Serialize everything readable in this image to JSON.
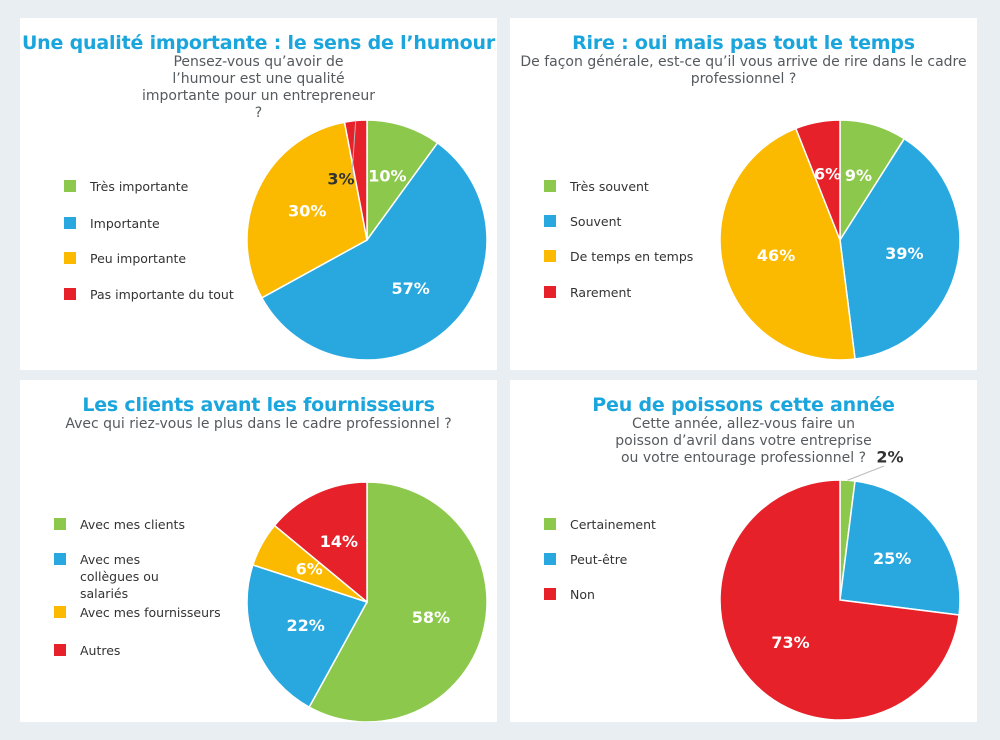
{
  "colors": {
    "green": "#8cc84b",
    "blue": "#29a8e0",
    "yellow": "#fbba00",
    "red": "#e6212a"
  },
  "chart_data": [
    {
      "type": "pie",
      "title": "Une qualité importante : le sens de l’humour",
      "subtitle": "Pensez-vous qu’avoir de l’humour est une qualité importante pour un entrepreneur ?",
      "categories": [
        "Très importante",
        "Importante",
        "Peu importante",
        "Pas importante du tout"
      ],
      "values": [
        10,
        57,
        30,
        3
      ],
      "labels": [
        "10%",
        "57%",
        "30%",
        "3%"
      ],
      "colors": [
        "#8cc84b",
        "#29a8e0",
        "#fbba00",
        "#e6212a"
      ]
    },
    {
      "type": "pie",
      "title": "Rire : oui mais pas tout le temps",
      "subtitle": "De façon générale, est-ce qu’il vous arrive de rire dans le cadre professionnel ?",
      "categories": [
        "Très souvent",
        "Souvent",
        "De temps en temps",
        "Rarement"
      ],
      "values": [
        9,
        39,
        46,
        6
      ],
      "labels": [
        "9%",
        "39%",
        "46%",
        "6%"
      ],
      "colors": [
        "#8cc84b",
        "#29a8e0",
        "#fbba00",
        "#e6212a"
      ]
    },
    {
      "type": "pie",
      "title": "Les clients avant les fournisseurs",
      "subtitle": "Avec qui riez-vous le plus dans le cadre professionnel ?",
      "categories": [
        "Avec mes clients",
        "Avec mes collègues ou salariés",
        "Avec mes fournisseurs",
        "Autres"
      ],
      "values": [
        58,
        22,
        6,
        14
      ],
      "labels": [
        "58%",
        "22%",
        "6%",
        "14%"
      ],
      "colors": [
        "#8cc84b",
        "#29a8e0",
        "#fbba00",
        "#e6212a"
      ]
    },
    {
      "type": "pie",
      "title": "Peu de poissons cette année",
      "subtitle": "Cette année, allez-vous faire un poisson d’avril dans votre entreprise ou votre entourage professionnel ?",
      "categories": [
        "Certainement",
        "Peut-être",
        "Non"
      ],
      "values": [
        2,
        25,
        73
      ],
      "labels": [
        "2%",
        "25%",
        "73%"
      ],
      "colors": [
        "#8cc84b",
        "#29a8e0",
        "#e6212a"
      ]
    }
  ]
}
